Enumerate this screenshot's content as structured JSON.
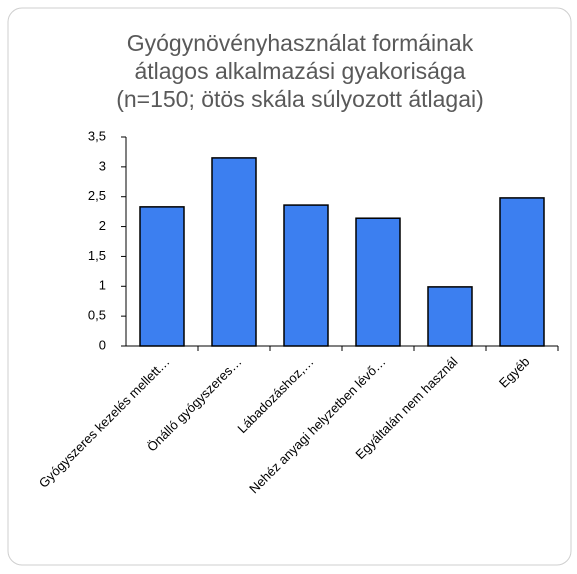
{
  "chart_data": {
    "type": "bar",
    "title": [
      "Gyógynövényhasználat formáinak",
      "átlagos alkalmazási gyakorisága",
      "(n=150; ötös skála súlyozott átlagai)"
    ],
    "categories": [
      "Gyógyszeres kezelés mellett…",
      "Önálló gyógyszeres…",
      "Lábadozáshoz,…",
      "Nehéz anyagi helyzetben lévő…",
      "Egyáltalán nem használ",
      "Egyéb"
    ],
    "values": [
      2.33,
      3.15,
      2.36,
      2.14,
      0.99,
      2.48
    ],
    "color": "#3c7ff0",
    "ylim": [
      0,
      3.5
    ],
    "yticks": [
      0,
      {
        "value": 0.5,
        "label": "0,5"
      },
      1,
      {
        "value": 1.5,
        "label": "1,5"
      },
      2,
      {
        "value": 2.5,
        "label": "2,5"
      },
      3,
      {
        "value": 3.5,
        "label": "3,5"
      }
    ],
    "grid": false
  }
}
